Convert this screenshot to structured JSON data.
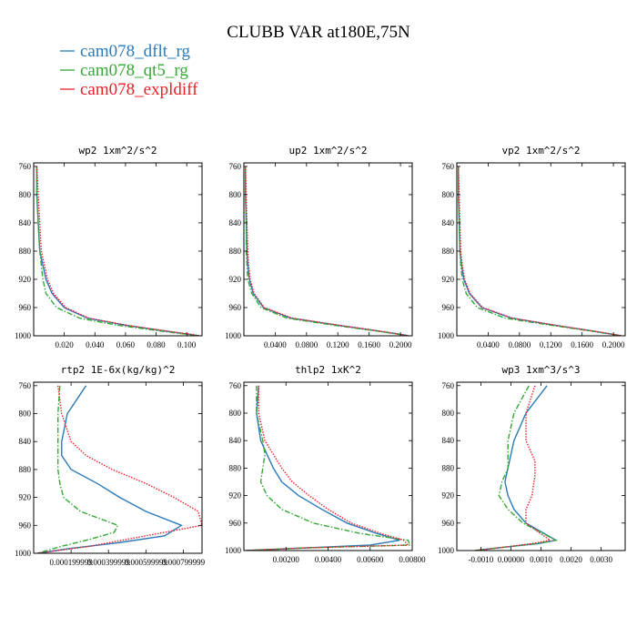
{
  "chart_data": {
    "type": "line",
    "title": "CLUBB VAR at180E,75N",
    "legend": [
      {
        "name": "cam078_dflt_rg",
        "color": "#2b7bb9",
        "dash": "solid"
      },
      {
        "name": "cam078_qt5_rg",
        "color": "#35a835",
        "dash": "dashdot"
      },
      {
        "name": "cam078_expldiff",
        "color": "#e8202a",
        "dash": "dotted"
      }
    ],
    "legend_position": "top-left",
    "panels": [
      {
        "title": "wp2   1xm^2/s^2",
        "xlim": [
          0.0,
          0.11
        ],
        "ylim": [
          1000,
          755
        ],
        "xticks": [
          0.02,
          0.04,
          0.06,
          0.08,
          0.1
        ],
        "xticklabels": [
          "0.020",
          "0.040",
          "0.060",
          "0.080",
          "0.100"
        ],
        "yticks": [
          760,
          800,
          840,
          880,
          920,
          960,
          1000
        ],
        "series": [
          {
            "name": "cam078_dflt_rg",
            "x": [
              0.002,
              0.002,
              0.003,
              0.004,
              0.006,
              0.008,
              0.012,
              0.02,
              0.035,
              0.06,
              0.085,
              0.102,
              0.108
            ],
            "y": [
              760,
              800,
              840,
              880,
              900,
              920,
              940,
              960,
              975,
              985,
              993,
              998,
              1000
            ]
          },
          {
            "name": "cam078_qt5_rg",
            "x": [
              0.002,
              0.002,
              0.003,
              0.004,
              0.005,
              0.006,
              0.008,
              0.015,
              0.03,
              0.055,
              0.082,
              0.1,
              0.108
            ],
            "y": [
              760,
              800,
              840,
              880,
              900,
              920,
              940,
              960,
              975,
              985,
              993,
              998,
              1000
            ]
          },
          {
            "name": "cam078_expldiff",
            "x": [
              0.002,
              0.003,
              0.004,
              0.005,
              0.007,
              0.009,
              0.013,
              0.021,
              0.036,
              0.061,
              0.086,
              0.103,
              0.108
            ],
            "y": [
              760,
              800,
              840,
              880,
              900,
              920,
              940,
              960,
              975,
              985,
              993,
              998,
              1000
            ]
          }
        ]
      },
      {
        "title": "up2   1xm^2/s^2",
        "xlim": [
          0.0,
          0.215
        ],
        "ylim": [
          1000,
          755
        ],
        "xticks": [
          0.04,
          0.08,
          0.12,
          0.16,
          0.2
        ],
        "xticklabels": [
          "0.0400",
          "0.0800",
          "0.1200",
          "0.1600",
          "0.2000"
        ],
        "yticks": [
          760,
          800,
          840,
          880,
          920,
          960,
          1000
        ],
        "series": [
          {
            "name": "cam078_dflt_rg",
            "x": [
              0.002,
              0.002,
              0.003,
              0.004,
              0.005,
              0.007,
              0.012,
              0.025,
              0.06,
              0.12,
              0.17,
              0.2,
              0.21
            ],
            "y": [
              760,
              800,
              840,
              880,
              900,
              920,
              940,
              960,
              975,
              985,
              993,
              998,
              1000
            ]
          },
          {
            "name": "cam078_qt5_rg",
            "x": [
              0.002,
              0.002,
              0.003,
              0.003,
              0.004,
              0.005,
              0.01,
              0.022,
              0.055,
              0.115,
              0.168,
              0.198,
              0.21
            ],
            "y": [
              760,
              800,
              840,
              880,
              900,
              920,
              940,
              960,
              975,
              985,
              993,
              998,
              1000
            ]
          },
          {
            "name": "cam078_expldiff",
            "x": [
              0.002,
              0.003,
              0.004,
              0.005,
              0.006,
              0.008,
              0.013,
              0.026,
              0.062,
              0.122,
              0.172,
              0.2,
              0.21
            ],
            "y": [
              760,
              800,
              840,
              880,
              900,
              920,
              940,
              960,
              975,
              985,
              993,
              998,
              1000
            ]
          }
        ]
      },
      {
        "title": "vp2   1xm^2/s^2",
        "xlim": [
          0.0,
          0.215
        ],
        "ylim": [
          1000,
          755
        ],
        "xticks": [
          0.04,
          0.08,
          0.12,
          0.16,
          0.2
        ],
        "xticklabels": [
          "0.0400",
          "0.0800",
          "0.1200",
          "0.1600",
          "0.2000"
        ],
        "yticks": [
          760,
          800,
          840,
          880,
          920,
          960,
          1000
        ],
        "series": [
          {
            "name": "cam078_dflt_rg",
            "x": [
              0.002,
              0.002,
              0.003,
              0.004,
              0.006,
              0.009,
              0.016,
              0.032,
              0.07,
              0.125,
              0.172,
              0.2,
              0.21
            ],
            "y": [
              760,
              800,
              840,
              880,
              900,
              920,
              940,
              960,
              975,
              985,
              993,
              998,
              1000
            ]
          },
          {
            "name": "cam078_qt5_rg",
            "x": [
              0.002,
              0.002,
              0.003,
              0.004,
              0.005,
              0.007,
              0.012,
              0.026,
              0.062,
              0.12,
              0.17,
              0.198,
              0.21
            ],
            "y": [
              760,
              800,
              840,
              880,
              900,
              920,
              940,
              960,
              975,
              985,
              993,
              998,
              1000
            ]
          },
          {
            "name": "cam078_expldiff",
            "x": [
              0.002,
              0.003,
              0.004,
              0.005,
              0.007,
              0.01,
              0.017,
              0.033,
              0.071,
              0.126,
              0.173,
              0.2,
              0.21
            ],
            "y": [
              760,
              800,
              840,
              880,
              900,
              920,
              940,
              960,
              975,
              985,
              993,
              998,
              1000
            ]
          }
        ]
      },
      {
        "title": "rtp2   1E-6x(kg/kg)^2",
        "xlim": [
          0.0,
          0.0009
        ],
        "ylim": [
          1000,
          755
        ],
        "xticks": [
          0.0002,
          0.0004,
          0.0006,
          0.0008
        ],
        "xticklabels": [
          "0.000199999",
          "0.000399999",
          "0.000599999",
          "0.000799999"
        ],
        "yticks": [
          760,
          800,
          840,
          880,
          920,
          960,
          1000
        ],
        "series": [
          {
            "name": "cam078_dflt_rg",
            "x": [
              0.00028,
              0.00018,
              0.00015,
              0.00015,
              0.0002,
              0.00034,
              0.00046,
              0.0006,
              0.00079,
              0.0007,
              0.00045,
              0.0002,
              2e-05
            ],
            "y": [
              760,
              800,
              840,
              860,
              880,
              900,
              920,
              940,
              960,
              975,
              985,
              993,
              1000
            ]
          },
          {
            "name": "cam078_qt5_rg",
            "x": [
              0.00014,
              0.00013,
              0.00013,
              0.00013,
              0.00014,
              0.00016,
              0.00025,
              0.00045,
              0.00043,
              0.0003,
              0.00015,
              2e-05
            ],
            "y": [
              760,
              800,
              840,
              880,
              900,
              920,
              940,
              960,
              970,
              980,
              990,
              1000
            ]
          },
          {
            "name": "cam078_expldiff",
            "x": [
              0.00013,
              0.00015,
              0.0002,
              0.00028,
              0.00042,
              0.0006,
              0.00075,
              0.00088,
              0.0009,
              0.0006,
              0.0003,
              2e-05
            ],
            "y": [
              760,
              800,
              840,
              860,
              880,
              900,
              920,
              940,
              960,
              975,
              990,
              1000
            ]
          }
        ]
      },
      {
        "title": "thlp2   1xK^2",
        "xlim": [
          0.0,
          0.008
        ],
        "ylim": [
          1000,
          755
        ],
        "xticks": [
          0.002,
          0.004,
          0.006,
          0.008
        ],
        "xticklabels": [
          "0.00200",
          "0.00400",
          "0.00600",
          "0.00800"
        ],
        "yticks": [
          760,
          800,
          840,
          880,
          920,
          960,
          1000
        ],
        "series": [
          {
            "name": "cam078_dflt_rg",
            "x": [
              0.0007,
              0.0006,
              0.0008,
              0.0011,
              0.0014,
              0.0018,
              0.0026,
              0.0037,
              0.0049,
              0.0063,
              0.0074,
              0.006,
              0.0001
            ],
            "y": [
              760,
              800,
              840,
              860,
              880,
              900,
              920,
              940,
              960,
              975,
              985,
              992,
              1000
            ]
          },
          {
            "name": "cam078_qt5_rg",
            "x": [
              0.0006,
              0.0006,
              0.0009,
              0.001,
              0.0009,
              0.0008,
              0.0011,
              0.0018,
              0.0033,
              0.0055,
              0.0078,
              0.0079,
              0.003,
              0.0001
            ],
            "y": [
              760,
              800,
              840,
              860,
              880,
              900,
              920,
              940,
              960,
              975,
              985,
              992,
              996,
              1000
            ]
          },
          {
            "name": "cam078_expldiff",
            "x": [
              0.0007,
              0.0007,
              0.001,
              0.0014,
              0.0018,
              0.0023,
              0.0031,
              0.004,
              0.0051,
              0.0065,
              0.0076,
              0.0078,
              0.003,
              0.0001
            ],
            "y": [
              760,
              800,
              840,
              860,
              880,
              900,
              920,
              940,
              960,
              975,
              985,
              992,
              996,
              1000
            ]
          }
        ]
      },
      {
        "title": "wp3   1xm^3/s^3",
        "xlim": [
          -0.0018,
          0.0038
        ],
        "ylim": [
          1000,
          755
        ],
        "xticks": [
          -0.001,
          0.0,
          0.001,
          0.002,
          0.003
        ],
        "xticklabels": [
          "-0.0010",
          "0.00000",
          "0.0010",
          "0.0020",
          "0.0030"
        ],
        "yticks": [
          760,
          800,
          840,
          880,
          920,
          960,
          1000
        ],
        "series": [
          {
            "name": "cam078_dflt_rg",
            "x": [
              0.0012,
              0.0005,
              0.0001,
              -0.0001,
              -0.0002,
              -0.0001,
              0.0001,
              0.0005,
              0.0015,
              0.0009,
              -0.0002,
              -0.0012
            ],
            "y": [
              760,
              800,
              840,
              880,
              900,
              920,
              940,
              960,
              985,
              990,
              995,
              1000
            ]
          },
          {
            "name": "cam078_qt5_rg",
            "x": [
              0.0006,
              0.0001,
              -0.0001,
              -0.0001,
              -0.0003,
              -0.0004,
              -0.0001,
              0.0004,
              0.0015,
              0.0008,
              -0.0002,
              -0.0012
            ],
            "y": [
              760,
              800,
              840,
              880,
              900,
              920,
              940,
              960,
              985,
              990,
              995,
              1000
            ]
          },
          {
            "name": "cam078_expldiff",
            "x": [
              0.0008,
              0.0005,
              0.0005,
              0.0008,
              0.0008,
              0.0007,
              0.0005,
              0.0005,
              0.0013,
              0.0007,
              -0.0002,
              -0.0012
            ],
            "y": [
              760,
              800,
              840,
              870,
              890,
              920,
              940,
              960,
              985,
              990,
              995,
              1000
            ]
          }
        ]
      }
    ]
  }
}
